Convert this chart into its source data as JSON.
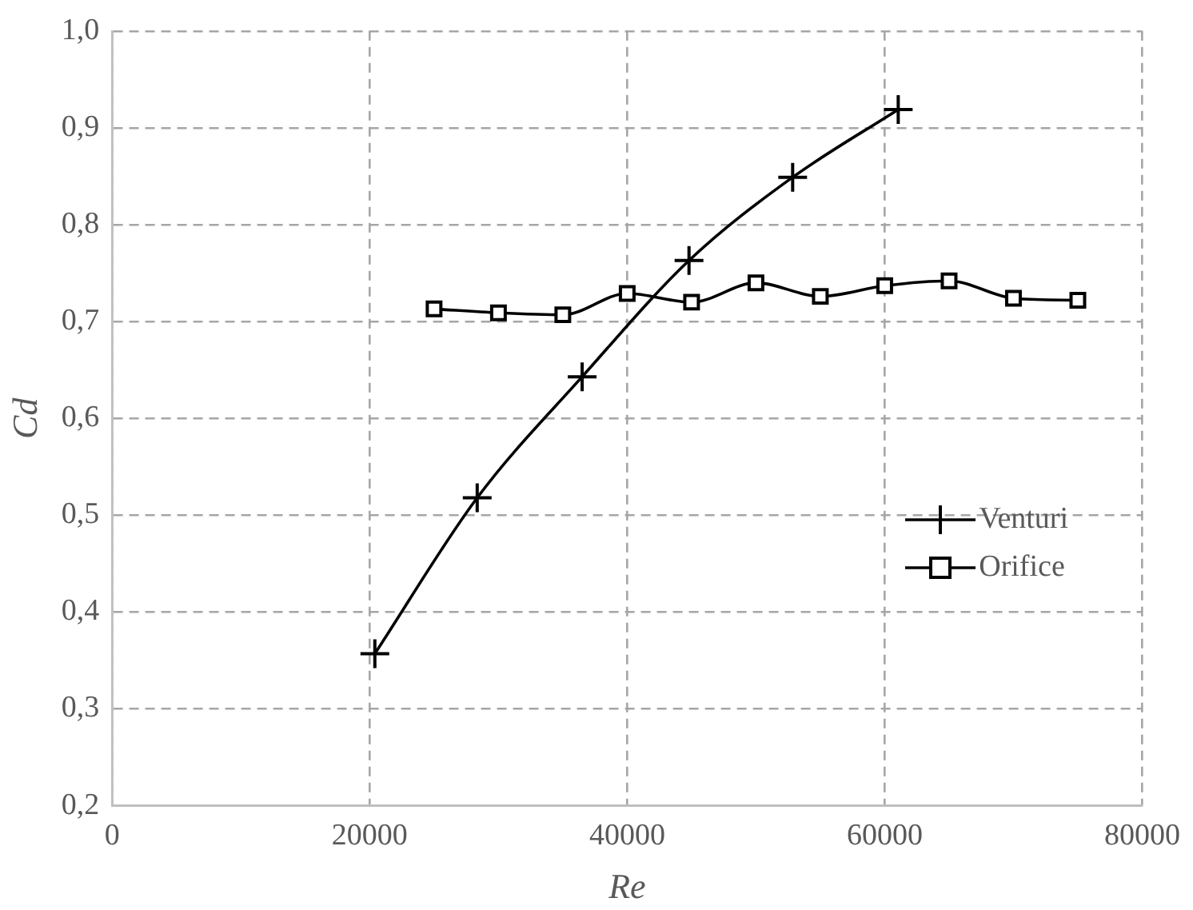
{
  "chart_data": {
    "type": "line",
    "xlabel": "Re",
    "ylabel": "Cd",
    "xlim": [
      0,
      80000
    ],
    "xticks": [
      0,
      20000,
      40000,
      60000,
      80000
    ],
    "ylim": [
      0.2,
      1.0
    ],
    "yticks": [
      {
        "value": 0.2,
        "label": "0,2"
      },
      {
        "value": 0.3,
        "label": "0,3"
      },
      {
        "value": 0.4,
        "label": "0,4"
      },
      {
        "value": 0.5,
        "label": "0,5"
      },
      {
        "value": 0.6,
        "label": "0,6"
      },
      {
        "value": 0.7,
        "label": "0,7"
      },
      {
        "value": 0.8,
        "label": "0,8"
      },
      {
        "value": 0.9,
        "label": "0,9"
      },
      {
        "value": 1.0,
        "label": "1,0"
      }
    ],
    "grid": true,
    "legend": "right",
    "line_style": "solid",
    "series": [
      {
        "name": "Venturi",
        "color": "#000000",
        "marker": "cross",
        "x": [
          20400,
          28350,
          36500,
          44800,
          52850,
          61050
        ],
        "values": [
          0.357,
          0.518,
          0.643,
          0.763,
          0.849,
          0.919
        ]
      },
      {
        "name": "Orifice",
        "color": "#000000",
        "marker": "square",
        "x": [
          25000,
          30000,
          35000,
          40000,
          45000,
          50000,
          55000,
          60000,
          65000,
          70000,
          75000
        ],
        "values": [
          0.713,
          0.709,
          0.707,
          0.729,
          0.72,
          0.74,
          0.726,
          0.737,
          0.742,
          0.724,
          0.722
        ]
      }
    ]
  }
}
